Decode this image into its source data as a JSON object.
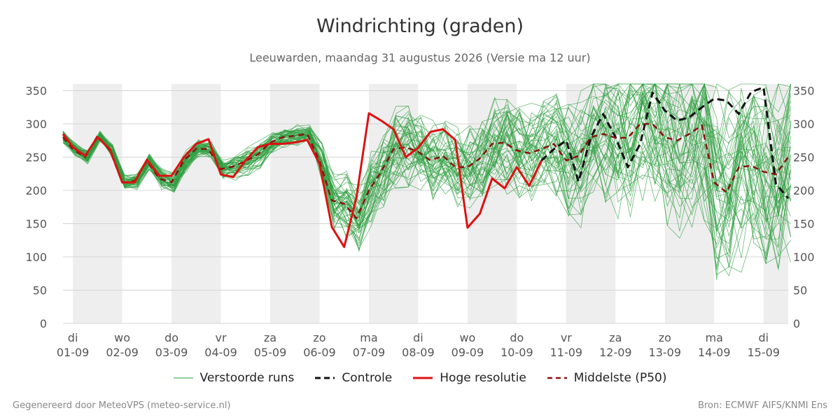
{
  "chart_data": {
    "type": "line",
    "title": "Windrichting (graden)",
    "subtitle": "Leeuwarden, maandag 31 augustus 2026 (Versie ma 12 uur)",
    "ylim": [
      0,
      360
    ],
    "yticks": [
      0,
      50,
      100,
      150,
      200,
      250,
      300,
      350
    ],
    "grid": true,
    "legend_position": "bottom",
    "x_range": [
      -0.2,
      14.5
    ],
    "day_labels": [
      {
        "x": 0,
        "day": "di",
        "date": "01-09"
      },
      {
        "x": 1,
        "day": "wo",
        "date": "02-09"
      },
      {
        "x": 2,
        "day": "do",
        "date": "03-09"
      },
      {
        "x": 3,
        "day": "vr",
        "date": "04-09"
      },
      {
        "x": 4,
        "day": "za",
        "date": "05-09"
      },
      {
        "x": 5,
        "day": "zo",
        "date": "06-09"
      },
      {
        "x": 6,
        "day": "ma",
        "date": "07-09"
      },
      {
        "x": 7,
        "day": "di",
        "date": "08-09"
      },
      {
        "x": 8,
        "day": "wo",
        "date": "09-09"
      },
      {
        "x": 9,
        "day": "do",
        "date": "10-09"
      },
      {
        "x": 10,
        "day": "vr",
        "date": "11-09"
      },
      {
        "x": 11,
        "day": "za",
        "date": "12-09"
      },
      {
        "x": 12,
        "day": "zo",
        "date": "13-09"
      },
      {
        "x": 13,
        "day": "ma",
        "date": "14-09"
      },
      {
        "x": 14,
        "day": "di",
        "date": "15-09"
      }
    ],
    "shaded_bands": [
      [
        0,
        1
      ],
      [
        2,
        3
      ],
      [
        4,
        5
      ],
      [
        6,
        7
      ],
      [
        8,
        9
      ],
      [
        10,
        11
      ],
      [
        12,
        13
      ],
      [
        14,
        14.5
      ]
    ],
    "series": [
      {
        "name": "Hoge resolutie",
        "color": "#dd1111",
        "x": [
          -0.2,
          0,
          0.25,
          0.5,
          0.75,
          1,
          1.25,
          1.5,
          1.75,
          2,
          2.25,
          2.5,
          2.75,
          3,
          3.25,
          3.5,
          3.75,
          4,
          4.25,
          4.5,
          4.75,
          5,
          5.25,
          5.5,
          5.75,
          6,
          6.25,
          6.5,
          6.75,
          7,
          7.25,
          7.5,
          7.75,
          8,
          8.25,
          8.5,
          8.75,
          9,
          9.25,
          9.5
        ],
        "values": [
          285,
          265,
          252,
          280,
          262,
          212,
          212,
          246,
          222,
          222,
          250,
          270,
          277,
          224,
          220,
          245,
          265,
          270,
          270,
          272,
          276,
          240,
          145,
          115,
          190,
          316,
          305,
          292,
          250,
          264,
          288,
          292,
          276,
          144,
          165,
          218,
          203,
          235,
          207,
          245
        ]
      },
      {
        "name": "Controle",
        "color": "#111111",
        "x": [
          9.5,
          9.75,
          10,
          10.25,
          10.5,
          10.75,
          11,
          11.25,
          11.5,
          11.75,
          12,
          12.25,
          12.5,
          12.75,
          13,
          13.25,
          13.5,
          13.75,
          14,
          14.25,
          14.5
        ],
        "values": [
          245,
          262,
          275,
          213,
          280,
          315,
          280,
          235,
          270,
          347,
          320,
          305,
          310,
          325,
          338,
          335,
          315,
          348,
          355,
          210,
          188
        ]
      },
      {
        "name": "Middelste (P50)",
        "color": "#8b1010",
        "x": [
          -0.2,
          0,
          0.25,
          0.5,
          0.75,
          1,
          1.25,
          1.5,
          1.75,
          2,
          2.25,
          2.5,
          2.75,
          3,
          3.25,
          3.5,
          3.75,
          4,
          4.25,
          4.5,
          4.75,
          5,
          5.25,
          5.5,
          5.75,
          6,
          6.25,
          6.5,
          6.75,
          7,
          7.25,
          7.5,
          7.75,
          8,
          8.25,
          8.5,
          8.75,
          9,
          9.25,
          9.5,
          9.75,
          10,
          10.25,
          10.5,
          10.75,
          11,
          11.25,
          11.5,
          11.75,
          12,
          12.25,
          12.5,
          12.75,
          13,
          13.25,
          13.5,
          13.75,
          14,
          14.25,
          14.5
        ],
        "values": [
          280,
          262,
          250,
          282,
          260,
          212,
          214,
          244,
          218,
          212,
          245,
          263,
          262,
          232,
          236,
          244,
          254,
          272,
          280,
          282,
          285,
          244,
          185,
          180,
          158,
          200,
          228,
          262,
          265,
          258,
          245,
          252,
          235,
          235,
          248,
          270,
          272,
          260,
          256,
          262,
          270,
          245,
          252,
          280,
          285,
          279,
          279,
          300,
          300,
          280,
          275,
          285,
          298,
          212,
          197,
          235,
          237,
          228,
          224,
          250
        ]
      }
    ],
    "ensemble": {
      "name": "Verstoorde runs",
      "color": "#2e9e3f",
      "member_count": 50,
      "x_start": -0.2,
      "x_step": 0.25,
      "median_values": [
        280,
        262,
        250,
        282,
        260,
        212,
        214,
        244,
        218,
        212,
        245,
        263,
        262,
        232,
        236,
        244,
        254,
        272,
        280,
        282,
        285,
        244,
        185,
        180,
        158,
        200,
        228,
        262,
        265,
        258,
        245,
        252,
        235,
        235,
        248,
        270,
        272,
        260,
        256,
        262,
        270,
        245,
        252,
        280,
        285,
        279,
        279,
        300,
        300,
        280,
        275,
        285,
        298,
        212,
        197,
        235,
        237,
        228,
        224,
        250
      ],
      "spread_values": [
        10,
        10,
        10,
        8,
        10,
        10,
        12,
        12,
        15,
        15,
        15,
        12,
        12,
        15,
        20,
        20,
        20,
        15,
        15,
        15,
        15,
        30,
        45,
        50,
        50,
        55,
        60,
        60,
        60,
        60,
        60,
        60,
        65,
        65,
        65,
        65,
        70,
        70,
        75,
        80,
        85,
        90,
        95,
        100,
        105,
        110,
        115,
        120,
        125,
        130,
        135,
        140,
        145,
        150,
        150,
        150,
        150,
        150,
        150,
        150
      ]
    }
  },
  "legend": {
    "ensemble": "Verstoorde runs",
    "control": "Controle",
    "highres": "Hoge resolutie",
    "median": "Middelste (P50)"
  },
  "footer": {
    "left": "Gegenereerd door MeteoVPS (meteo-service.nl)",
    "right": "Bron: ECMWF AIFS/KNMI Ens"
  }
}
